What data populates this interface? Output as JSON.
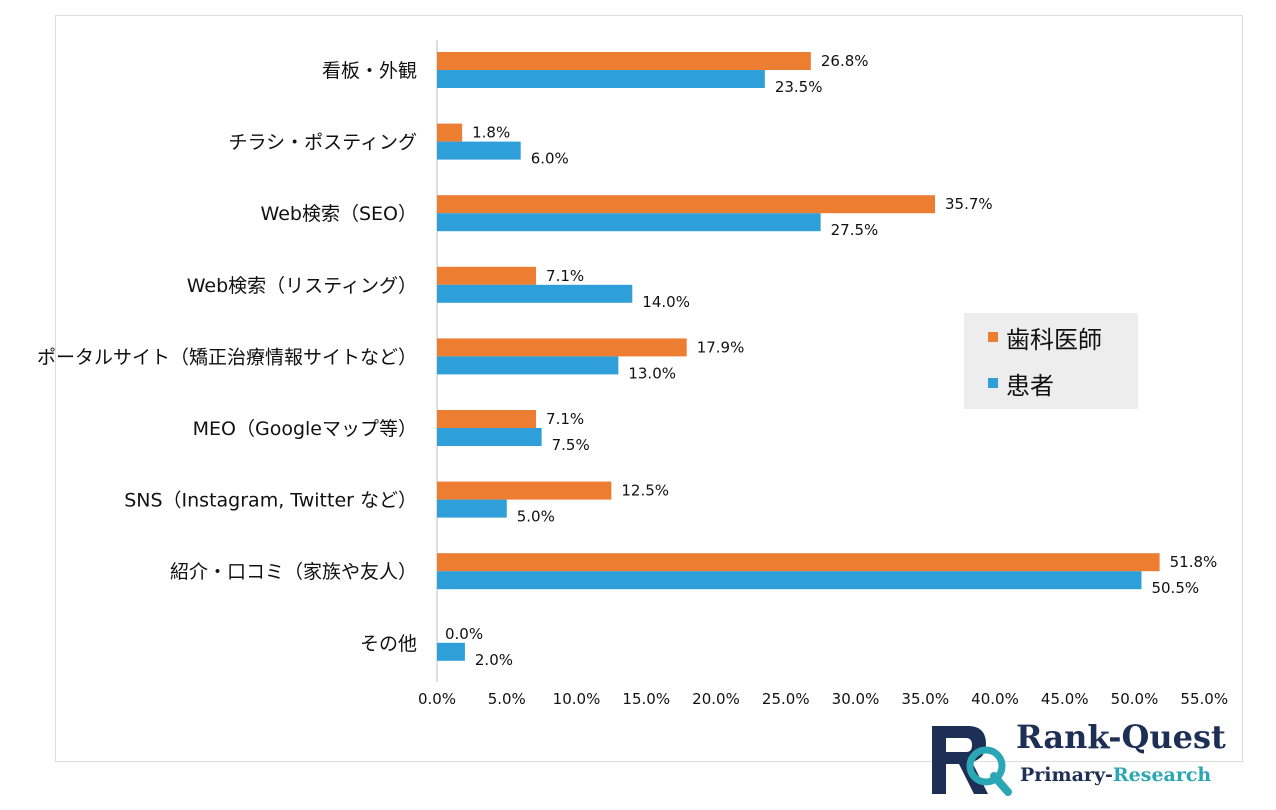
{
  "chart_data": {
    "type": "bar",
    "orientation": "horizontal",
    "categories": [
      "看板・外観",
      "チラシ・ポスティング",
      "Web検索（SEO）",
      "Web検索（リスティング）",
      "ポータルサイト（矯正治療情報サイトなど）",
      "MEO（Googleマップ等）",
      "SNS（Instagram, Twitter など）",
      "紹介・口コミ（家族や友人）",
      "その他"
    ],
    "series": [
      {
        "name": "歯科医師",
        "color": "#ed7d31",
        "values": [
          26.8,
          1.8,
          35.7,
          7.1,
          17.9,
          7.1,
          12.5,
          51.8,
          0.0
        ],
        "labels": [
          "26.8%",
          "1.8%",
          "35.7%",
          "7.1%",
          "17.9%",
          "7.1%",
          "12.5%",
          "51.8%",
          "0.0%"
        ]
      },
      {
        "name": "患者",
        "color": "#2e9fd8",
        "values": [
          23.5,
          6.0,
          27.5,
          14.0,
          13.0,
          7.5,
          5.0,
          50.5,
          2.0
        ],
        "labels": [
          "23.5%",
          "6.0%",
          "27.5%",
          "14.0%",
          "13.0%",
          "7.5%",
          "5.0%",
          "50.5%",
          "2.0%"
        ]
      }
    ],
    "xlim": [
      0,
      55
    ],
    "xticks": [
      "0.0%",
      "5.0%",
      "10.0%",
      "15.0%",
      "20.0%",
      "25.0%",
      "30.0%",
      "35.0%",
      "40.0%",
      "45.0%",
      "50.0%",
      "55.0%"
    ],
    "grid": false,
    "legend": "right"
  },
  "logo": {
    "title": "Rank-Quest",
    "subtitle_part1": "Primary-",
    "subtitle_part2": "Research",
    "colors": {
      "navy": "#1e2f55",
      "teal": "#2ba6b4"
    }
  }
}
